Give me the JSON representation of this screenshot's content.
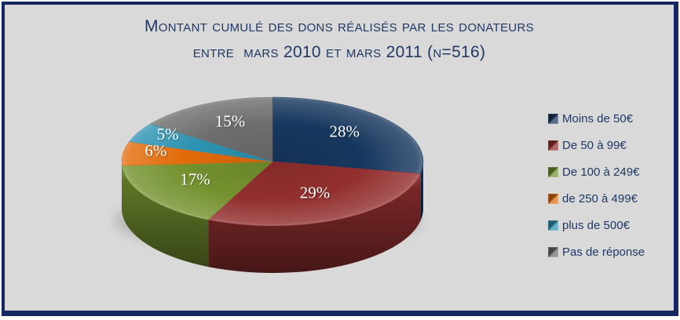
{
  "frame": {
    "background_color": "#D9D9D9",
    "border_color": "#15285F",
    "outer_background": "#FFFFFF"
  },
  "title": {
    "line1": "Montant cumulé des dons réalisés par les donateurs",
    "line2": "entre  mars 2010 et mars 2011 (n=516)",
    "color": "#1F3864"
  },
  "chart_data": {
    "type": "pie",
    "style": "3d-pie",
    "title": "Montant cumulé des dons réalisés par les donateurs entre mars 2010 et mars 2011 (n=516)",
    "sample_size": 516,
    "categories": [
      "Moins de 50€",
      "De 50 à 99€",
      "De 100 à 249€",
      "de 250 à 499€",
      "plus de 500€",
      "Pas de réponse"
    ],
    "values": [
      28,
      29,
      17,
      6,
      5,
      15
    ],
    "unit": "%",
    "data_labels": [
      "28%",
      "29%",
      "17%",
      "6%",
      "5%",
      "15%"
    ],
    "colors": [
      "#17375E",
      "#932F2F",
      "#74912F",
      "#E26B0A",
      "#2E93B2",
      "#6E6E6E"
    ],
    "data_label_color": "#FFFFFF",
    "legend_position": "right",
    "legend_text_color": "#1F3864",
    "start_angle_deg": 0,
    "direction": "clockwise"
  }
}
